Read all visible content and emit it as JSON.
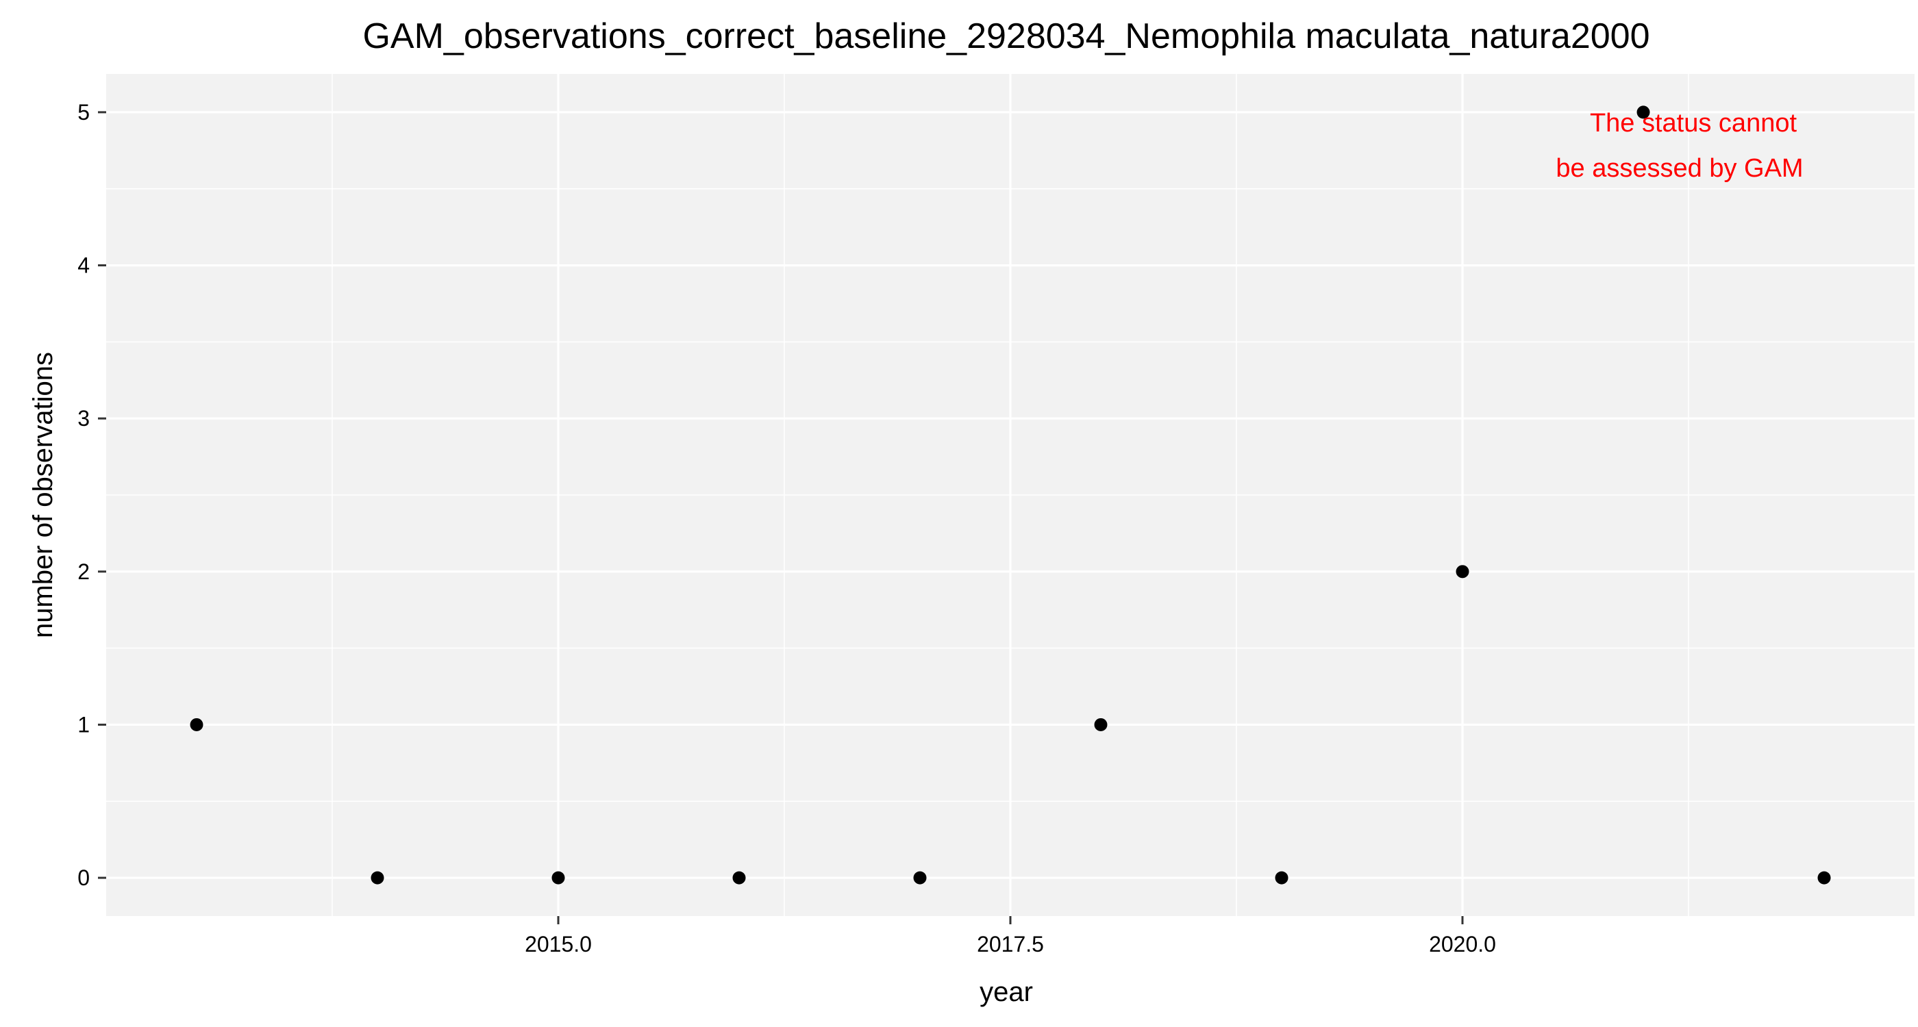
{
  "chart_data": {
    "type": "scatter",
    "title": "GAM_observations_correct_baseline_2928034_Nemophila maculata_natura2000",
    "xlabel": "year",
    "ylabel": "number of observations",
    "xlim": [
      2012.5,
      2022.5
    ],
    "ylim": [
      -0.25,
      5.25
    ],
    "x_ticks": [
      2015.0,
      2017.5,
      2020.0
    ],
    "x_tick_labels": [
      "2015.0",
      "2017.5",
      "2020.0"
    ],
    "x_minor_ticks": [
      2013.75,
      2016.25,
      2018.75,
      2021.25
    ],
    "y_ticks": [
      0,
      1,
      2,
      3,
      4,
      5
    ],
    "y_tick_labels": [
      "0",
      "1",
      "2",
      "3",
      "4",
      "5"
    ],
    "y_minor_ticks": [
      0.5,
      1.5,
      2.5,
      3.5,
      4.5
    ],
    "grid": true,
    "points": [
      {
        "x": 2013,
        "y": 1
      },
      {
        "x": 2014,
        "y": 0
      },
      {
        "x": 2015,
        "y": 0
      },
      {
        "x": 2016,
        "y": 0
      },
      {
        "x": 2017,
        "y": 0
      },
      {
        "x": 2018,
        "y": 1
      },
      {
        "x": 2019,
        "y": 0
      },
      {
        "x": 2020,
        "y": 2
      },
      {
        "x": 2021,
        "y": 5
      },
      {
        "x": 2022,
        "y": 0
      }
    ],
    "annotation": {
      "lines": [
        "The status cannot",
        "be assessed by GAM"
      ],
      "color": "#ff0000"
    },
    "colors": {
      "panel": "#f2f2f2",
      "grid": "#ffffff",
      "point": "#000000"
    }
  }
}
